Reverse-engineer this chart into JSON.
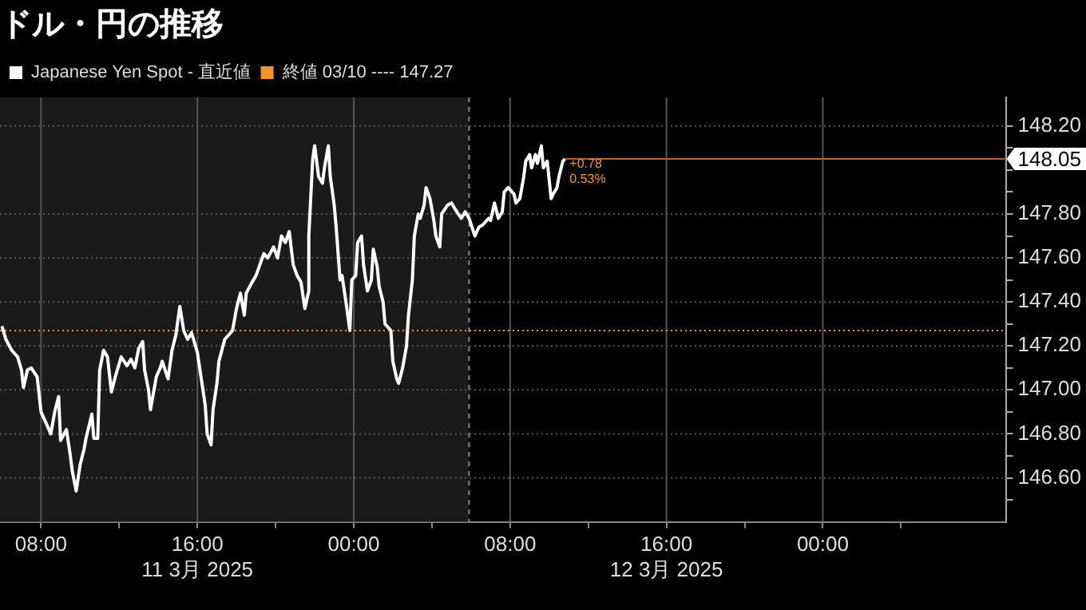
{
  "chart_data": {
    "type": "line",
    "title": "ドル・円の推移",
    "x": [
      "2025-03-11T06:00",
      "2025-03-11T06:12",
      "2025-03-11T06:30",
      "2025-03-11T06:48",
      "2025-03-11T07:00",
      "2025-03-11T07:06",
      "2025-03-11T07:18",
      "2025-03-11T07:30",
      "2025-03-11T07:48",
      "2025-03-11T08:00",
      "2025-03-11T08:12",
      "2025-03-11T08:30",
      "2025-03-11T08:42",
      "2025-03-11T08:54",
      "2025-03-11T09:00",
      "2025-03-11T09:18",
      "2025-03-11T09:30",
      "2025-03-11T09:36",
      "2025-03-11T09:48",
      "2025-03-11T10:00",
      "2025-03-11T10:12",
      "2025-03-11T10:18",
      "2025-03-11T10:36",
      "2025-03-11T10:42",
      "2025-03-11T10:54",
      "2025-03-11T11:00",
      "2025-03-11T11:12",
      "2025-03-11T11:24",
      "2025-03-11T11:36",
      "2025-03-11T11:48",
      "2025-03-11T12:06",
      "2025-03-11T12:24",
      "2025-03-11T12:36",
      "2025-03-11T12:48",
      "2025-03-11T13:00",
      "2025-03-11T13:12",
      "2025-03-11T13:18",
      "2025-03-11T13:30",
      "2025-03-11T13:36",
      "2025-03-11T13:54",
      "2025-03-11T14:06",
      "2025-03-11T14:12",
      "2025-03-11T14:30",
      "2025-03-11T14:42",
      "2025-03-11T14:54",
      "2025-03-11T15:06",
      "2025-03-11T15:18",
      "2025-03-11T15:30",
      "2025-03-11T15:42",
      "2025-03-11T16:00",
      "2025-03-11T16:12",
      "2025-03-11T16:24",
      "2025-03-11T16:30",
      "2025-03-11T16:42",
      "2025-03-11T16:48",
      "2025-03-11T17:00",
      "2025-03-11T17:06",
      "2025-03-11T17:24",
      "2025-03-11T17:36",
      "2025-03-11T17:48",
      "2025-03-11T18:00",
      "2025-03-11T18:12",
      "2025-03-11T18:24",
      "2025-03-11T18:30",
      "2025-03-11T18:48",
      "2025-03-11T19:00",
      "2025-03-11T19:12",
      "2025-03-11T19:24",
      "2025-03-11T19:36",
      "2025-03-11T19:54",
      "2025-03-11T20:06",
      "2025-03-11T20:18",
      "2025-03-11T20:30",
      "2025-03-11T20:42",
      "2025-03-11T20:54",
      "2025-03-11T21:06",
      "2025-03-11T21:18",
      "2025-03-11T21:30",
      "2025-03-11T21:42",
      "2025-03-11T21:42",
      "2025-03-11T21:54",
      "2025-03-11T22:00",
      "2025-03-11T22:12",
      "2025-03-11T22:24",
      "2025-03-11T22:30",
      "2025-03-11T22:42",
      "2025-03-11T22:48",
      "2025-03-11T23:00",
      "2025-03-11T23:06",
      "2025-03-11T23:18",
      "2025-03-11T23:24",
      "2025-03-11T23:36",
      "2025-03-11T23:48",
      "2025-03-11T23:54",
      "2025-03-12T00:06",
      "2025-03-12T00:12",
      "2025-03-12T00:24",
      "2025-03-12T00:30",
      "2025-03-12T00:42",
      "2025-03-12T00:54",
      "2025-03-12T01:00",
      "2025-03-12T01:12",
      "2025-03-12T01:18",
      "2025-03-12T01:30",
      "2025-03-12T01:36",
      "2025-03-12T01:54",
      "2025-03-12T02:00",
      "2025-03-12T02:12",
      "2025-03-12T02:18",
      "2025-03-12T02:30",
      "2025-03-12T02:42",
      "2025-03-12T02:48",
      "2025-03-12T03:00",
      "2025-03-12T03:06",
      "2025-03-12T03:18",
      "2025-03-12T03:24",
      "2025-03-12T03:36",
      "2025-03-12T03:42",
      "2025-03-12T03:54",
      "2025-03-12T04:06",
      "2025-03-12T04:12",
      "2025-03-12T04:24",
      "2025-03-12T04:30",
      "2025-03-12T04:48",
      "2025-03-12T05:00",
      "2025-03-12T05:12",
      "2025-03-12T05:30",
      "2025-03-12T05:42",
      "2025-03-12T05:54",
      "2025-03-12T06:12",
      "2025-03-12T06:24",
      "2025-03-12T06:36",
      "2025-03-12T06:54",
      "2025-03-12T07:00",
      "2025-03-12T07:12",
      "2025-03-12T07:24",
      "2025-03-12T07:36",
      "2025-03-12T07:42",
      "2025-03-12T07:54",
      "2025-03-12T08:12",
      "2025-03-12T08:18",
      "2025-03-12T08:30",
      "2025-03-12T08:42",
      "2025-03-12T08:48",
      "2025-03-12T09:00",
      "2025-03-12T09:06",
      "2025-03-12T09:18",
      "2025-03-12T09:24",
      "2025-03-12T09:36",
      "2025-03-12T09:42",
      "2025-03-12T09:54",
      "2025-03-12T10:06",
      "2025-03-12T10:12",
      "2025-03-12T10:24",
      "2025-03-12T10:30",
      "2025-03-12T10:42",
      "2025-03-12T10:48"
    ],
    "series": [
      {
        "name": "Japanese Yen Spot - 直近値",
        "color": "#ffffff",
        "values": [
          147.29,
          147.23,
          147.18,
          147.15,
          147.09,
          147.01,
          147.09,
          147.1,
          147.06,
          146.9,
          146.86,
          146.8,
          146.9,
          146.97,
          146.77,
          146.82,
          146.7,
          146.63,
          146.54,
          146.66,
          146.73,
          146.78,
          146.89,
          146.78,
          146.78,
          147.09,
          147.18,
          147.15,
          146.99,
          147.06,
          147.15,
          147.11,
          147.14,
          147.1,
          147.19,
          147.22,
          147.09,
          147.0,
          146.91,
          147.06,
          147.1,
          147.13,
          147.05,
          147.18,
          147.25,
          147.38,
          147.27,
          147.23,
          147.26,
          147.17,
          147.05,
          146.93,
          146.8,
          146.75,
          146.91,
          147.03,
          147.13,
          147.23,
          147.25,
          147.27,
          147.37,
          147.44,
          147.34,
          147.44,
          147.49,
          147.52,
          147.57,
          147.62,
          147.6,
          147.65,
          147.6,
          147.7,
          147.67,
          147.72,
          147.57,
          147.52,
          147.49,
          147.37,
          147.45,
          147.7,
          148.05,
          148.11,
          147.97,
          147.94,
          148.01,
          148.11,
          147.97,
          147.84,
          147.74,
          147.5,
          147.52,
          147.4,
          147.27,
          147.5,
          147.52,
          147.67,
          147.7,
          147.57,
          147.45,
          147.5,
          147.64,
          147.56,
          147.47,
          147.4,
          147.3,
          147.27,
          147.13,
          147.05,
          147.03,
          147.1,
          147.2,
          147.34,
          147.5,
          147.7,
          147.8,
          147.78,
          147.84,
          147.92,
          147.87,
          147.77,
          147.7,
          147.65,
          147.8,
          147.84,
          147.85,
          147.82,
          147.78,
          147.81,
          147.78,
          147.7,
          147.74,
          147.75,
          147.78,
          147.77,
          147.85,
          147.78,
          147.81,
          147.9,
          147.92,
          147.89,
          147.85,
          147.87,
          147.97,
          148.04,
          148.07,
          148.01,
          148.07,
          148.03,
          148.11,
          148.01,
          148.04,
          147.87,
          147.89,
          147.92,
          147.97,
          148.04,
          148.05
        ]
      }
    ],
    "xlim": [
      "2025-03-11T05:54",
      "2025-03-13T09:24"
    ],
    "xticks": [
      {
        "value": "2025-03-11T08:00",
        "label": "08:00"
      },
      {
        "value": "2025-03-11T12:00",
        "label": null
      },
      {
        "value": "2025-03-11T16:00",
        "label": "16:00\n11 3月 2025"
      },
      {
        "value": "2025-03-11T20:00",
        "label": null
      },
      {
        "value": "2025-03-12T00:00",
        "label": "00:00"
      },
      {
        "value": "2025-03-12T04:00",
        "label": null
      },
      {
        "value": "2025-03-12T08:00",
        "label": "08:00"
      },
      {
        "value": "2025-03-12T12:00",
        "label": null
      },
      {
        "value": "2025-03-12T16:00",
        "label": "16:00\n12 3月 2025"
      },
      {
        "value": "2025-03-12T20:00",
        "label": null
      },
      {
        "value": "2025-03-13T00:00",
        "label": "00:00"
      },
      {
        "value": "2025-03-13T04:00",
        "label": null
      }
    ],
    "ylim": [
      146.4,
      148.33
    ],
    "yticks": [
      {
        "value": 146.5,
        "label": null
      },
      {
        "value": 146.6,
        "label": "146.60"
      },
      {
        "value": 146.7,
        "label": null
      },
      {
        "value": 146.8,
        "label": "146.80"
      },
      {
        "value": 146.9,
        "label": null
      },
      {
        "value": 147.0,
        "label": "147.00"
      },
      {
        "value": 147.1,
        "label": null
      },
      {
        "value": 147.2,
        "label": "147.20"
      },
      {
        "value": 147.3,
        "label": null
      },
      {
        "value": 147.4,
        "label": "147.40"
      },
      {
        "value": 147.5,
        "label": null
      },
      {
        "value": 147.6,
        "label": "147.60"
      },
      {
        "value": 147.7,
        "label": null
      },
      {
        "value": 147.8,
        "label": "147.80"
      },
      {
        "value": 147.9,
        "label": null
      },
      {
        "value": 148.0,
        "label": null
      },
      {
        "value": 148.1,
        "label": null
      },
      {
        "value": 148.2,
        "label": "148.20"
      }
    ],
    "ref_lines": [
      {
        "axis": "y",
        "value": 147.27,
        "label": "終値 03/10 ---- 147.27",
        "color": "#f7931e",
        "line_style": "dotted"
      },
      {
        "axis": "y",
        "value": 148.05,
        "label": "148.05",
        "color": "#b5602a",
        "line_style": "solid"
      },
      {
        "axis": "x",
        "value": "2025-03-12T05:54",
        "color": "#888888",
        "line_style": "dashed"
      }
    ],
    "bands": [
      {
        "axis": "x",
        "from": "2025-03-11T05:54",
        "to": "2025-03-12T05:54",
        "color": "#1a1a1a"
      }
    ],
    "annotations": [
      {
        "text": "+0.78",
        "x": "2025-03-12T10:48",
        "y": 148.05
      },
      {
        "text": "0.53%",
        "x": "2025-03-12T10:48",
        "y": 147.98
      }
    ],
    "grid": true,
    "legend": "top left",
    "marker": "none",
    "line_style": "solid"
  }
}
